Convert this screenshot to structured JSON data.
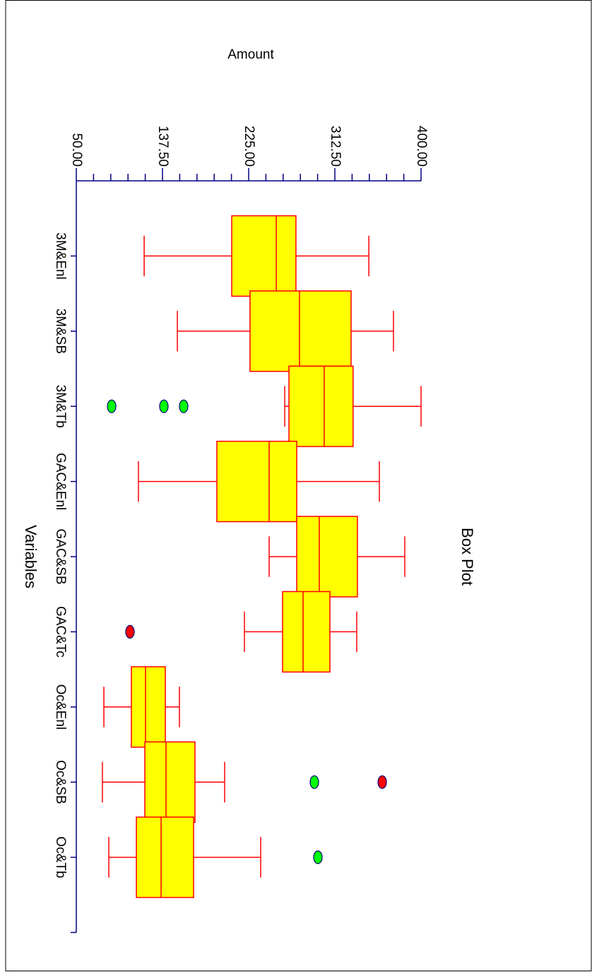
{
  "chart_data": {
    "type": "box",
    "title": "Box Plot",
    "y_label": "Amount",
    "x_label": "Variables",
    "categories": [
      "3M&Enl",
      "3M&SB",
      "3M&Tb",
      "GAC&Enl",
      "GAC&SB",
      "GAC&Tc",
      "Oc&Enl",
      "Oc&SB",
      "Oc&Tb"
    ],
    "boxes": [
      {
        "whislo": 118.9,
        "q1": 207.8,
        "med": 253,
        "q3": 273,
        "whishi": 347,
        "outliers": []
      },
      {
        "whislo": 152.6,
        "q1": 226.4,
        "med": 276.6,
        "q3": 329,
        "whishi": 372,
        "outliers": []
      },
      {
        "whislo": 261.6,
        "q1": 265.9,
        "med": 301.7,
        "q3": 331,
        "whishi": 400,
        "outliers": [
          {
            "value": 85.9,
            "color": "#00ff00"
          },
          {
            "value": 138.9,
            "color": "#00ff00"
          },
          {
            "value": 159,
            "color": "#00ff00"
          }
        ]
      },
      {
        "whislo": 113.1,
        "q1": 192.7,
        "med": 245.8,
        "q3": 273.8,
        "whishi": 357.7,
        "outliers": []
      },
      {
        "whislo": 245.8,
        "q1": 273.8,
        "med": 296.7,
        "q3": 335.4,
        "whishi": 383.5,
        "outliers": []
      },
      {
        "whislo": 220.7,
        "q1": 259.4,
        "med": 280.2,
        "q3": 307.5,
        "whishi": 334.7,
        "outliers": [
          {
            "value": 104.5,
            "color": "#ff0000"
          }
        ]
      },
      {
        "whislo": 78,
        "q1": 105.9,
        "med": 120.3,
        "q3": 140.4,
        "whishi": 154.7,
        "outliers": []
      },
      {
        "whislo": 76.5,
        "q1": 119.6,
        "med": 141.1,
        "q3": 170.5,
        "whishi": 200.6,
        "outliers": [
          {
            "value": 291.7,
            "color": "#00ff00"
          },
          {
            "value": 360.6,
            "color": "#ff0000"
          }
        ]
      },
      {
        "whislo": 83,
        "q1": 111,
        "med": 136.1,
        "q3": 169.1,
        "whishi": 237.2,
        "outliers": [
          {
            "value": 295.3,
            "color": "#00ff00"
          }
        ]
      }
    ],
    "box_color": "#ffff00",
    "line_color": "#ff0000",
    "axis_color": "#000080",
    "ylim": [
      50,
      400
    ],
    "yticks": [
      {
        "value": 50,
        "label": "50.00"
      },
      {
        "value": 137.5,
        "label": "137.50"
      },
      {
        "value": 225,
        "label": "225.00"
      },
      {
        "value": 312.5,
        "label": "312.50"
      },
      {
        "value": 400,
        "label": "400.00"
      }
    ],
    "minor_yticks": [
      67.5,
      85,
      102.5,
      120,
      155,
      172.5,
      190,
      207.5,
      242.5,
      260,
      277.5,
      295,
      330,
      347.5,
      365,
      382.5
    ]
  }
}
